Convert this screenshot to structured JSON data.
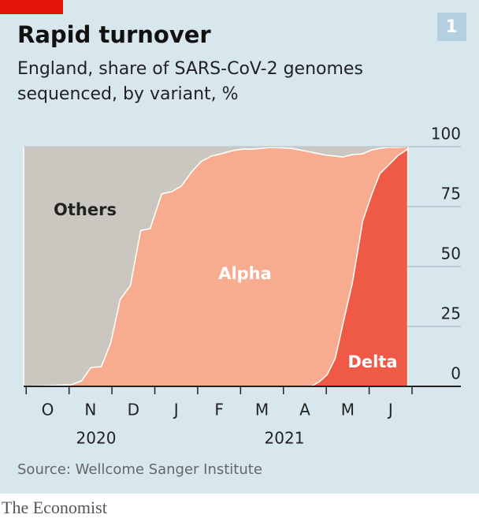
{
  "chart_data": {
    "type": "area",
    "stacked": true,
    "title": "Rapid turnover",
    "subtitle": [
      "England, share of SARS-CoV-2 genomes",
      "sequenced, by variant, %"
    ],
    "badge": "1",
    "x": [
      -0.06,
      1.05,
      1.29,
      1.51,
      1.75,
      1.97,
      2.19,
      2.43,
      2.67,
      2.89,
      3.16,
      3.4,
      3.62,
      3.86,
      4.08,
      4.32,
      4.54,
      4.82,
      5.06,
      5.28,
      5.74,
      6.19,
      6.65,
      6.84,
      7.02,
      7.21,
      7.39,
      7.61,
      7.85,
      8.07,
      8.25,
      8.44,
      8.68,
      8.9
    ],
    "xlim": [
      -0.06,
      9.0
    ],
    "xticks": [
      {
        "value": 0,
        "label": "O"
      },
      {
        "value": 1,
        "label": "N"
      },
      {
        "value": 2,
        "label": "D"
      },
      {
        "value": 3,
        "label": "J"
      },
      {
        "value": 4,
        "label": "F"
      },
      {
        "value": 5,
        "label": "M"
      },
      {
        "value": 6,
        "label": "A"
      },
      {
        "value": 7,
        "label": "M"
      },
      {
        "value": 8,
        "label": "J"
      }
    ],
    "years": [
      "2020",
      "2021"
    ],
    "ylim": [
      0,
      100
    ],
    "yticks": [
      0,
      25,
      50,
      75,
      100
    ],
    "grid": true,
    "series": [
      {
        "name": "Delta",
        "color": "#ee5a45",
        "values": [
          0,
          0,
          0,
          0,
          0,
          0,
          0,
          0,
          0,
          0,
          0,
          0,
          0,
          0,
          0,
          0,
          0,
          0,
          0,
          0,
          0,
          0,
          0,
          2.0,
          4.9,
          11.8,
          26.3,
          43.4,
          69.1,
          80.6,
          88.8,
          92.1,
          96.4,
          99.0
        ]
      },
      {
        "name": "Alpha",
        "color": "#f7ab8f",
        "values": [
          0,
          0.7,
          2.3,
          7.9,
          8.2,
          18.1,
          36.2,
          42.1,
          65.1,
          65.8,
          80.3,
          81.3,
          83.6,
          89.5,
          93.8,
          96.1,
          97.0,
          98.4,
          99.0,
          99.0,
          99.7,
          99.3,
          97.7,
          95.0,
          91.5,
          84.3,
          69.4,
          53.3,
          27.9,
          18.1,
          10.5,
          7.6,
          3.3,
          1.0
        ]
      },
      {
        "name": "Others",
        "color": "#c9c7bf",
        "values": [
          100,
          99.3,
          97.7,
          92.1,
          91.8,
          81.9,
          63.8,
          57.9,
          34.9,
          34.2,
          19.7,
          18.7,
          16.4,
          10.5,
          6.2,
          3.9,
          3.0,
          1.6,
          1.0,
          1.0,
          0.3,
          0.7,
          2.3,
          3.0,
          3.6,
          3.9,
          4.3,
          3.3,
          3.0,
          1.3,
          0.7,
          0.3,
          0.3,
          0
        ]
      }
    ]
  },
  "source": "Source: Wellcome Sanger Institute",
  "brand": "The Economist"
}
